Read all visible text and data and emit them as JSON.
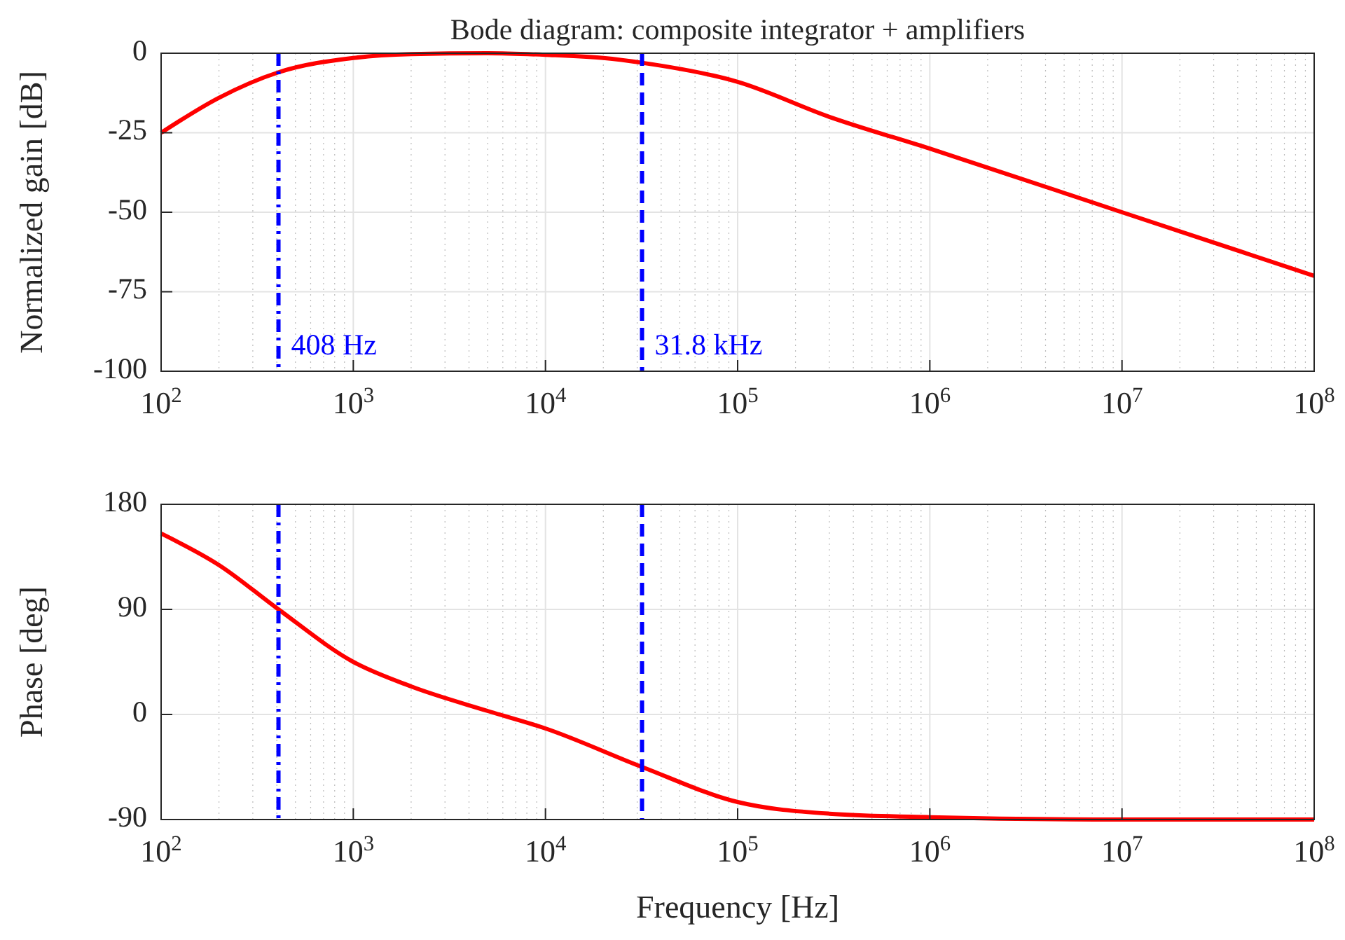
{
  "chart_data": [
    {
      "type": "line",
      "title": "Bode diagram: composite integrator + amplifiers",
      "ylabel": "Normalized gain [dB]",
      "log": "x",
      "grid": true,
      "line_style": "solid",
      "marker": "none",
      "xlim": [
        100,
        100000000
      ],
      "xticks": [
        {
          "value": 100,
          "label": "10$^{2}$"
        },
        {
          "value": 1000,
          "label": "10$^{3}$"
        },
        {
          "value": 10000,
          "label": "10$^{4}$"
        },
        {
          "value": 100000,
          "label": "10$^{5}$"
        },
        {
          "value": 1000000,
          "label": "10$^{6}$"
        },
        {
          "value": 10000000,
          "label": "10$^{7}$"
        },
        {
          "value": 100000000,
          "label": "10$^{8}$"
        }
      ],
      "ylim": [
        -100,
        0
      ],
      "yticks": [
        -100,
        -75,
        -50,
        -25,
        0
      ],
      "series": [
        {
          "color": "#ff0000",
          "x": [
            100,
            200,
            408,
            1000,
            2000,
            5000,
            10000,
            20000,
            31800,
            100000,
            300000,
            1000000,
            10000000,
            100000000
          ],
          "values": [
            -25,
            -14,
            -6,
            -1.5,
            -0.3,
            0,
            -0.5,
            -1.5,
            -3,
            -9,
            -20,
            -30,
            -50,
            -70
          ]
        }
      ],
      "ref_lines": [
        {
          "axis": "x",
          "value": 408,
          "label": "408 Hz",
          "color": "#0000ff",
          "line_style": "dashdot"
        },
        {
          "axis": "x",
          "value": 31800,
          "label": "31.8 kHz",
          "color": "#0000ff",
          "line_style": "dashed"
        }
      ]
    },
    {
      "type": "line",
      "xlabel": "Frequency [Hz]",
      "ylabel": "Phase [deg]",
      "log": "x",
      "grid": true,
      "line_style": "solid",
      "marker": "none",
      "xlim": [
        100,
        100000000
      ],
      "xticks": [
        {
          "value": 100,
          "label": "10$^{2}$"
        },
        {
          "value": 1000,
          "label": "10$^{3}$"
        },
        {
          "value": 10000,
          "label": "10$^{4}$"
        },
        {
          "value": 100000,
          "label": "10$^{5}$"
        },
        {
          "value": 1000000,
          "label": "10$^{6}$"
        },
        {
          "value": 10000000,
          "label": "10$^{7}$"
        },
        {
          "value": 100000000,
          "label": "10$^{8}$"
        }
      ],
      "ylim": [
        -90,
        180
      ],
      "yticks": [
        -90,
        0,
        90,
        180
      ],
      "series": [
        {
          "color": "#ff0000",
          "x": [
            100,
            200,
            408,
            1000,
            2000,
            5000,
            10000,
            31800,
            100000,
            300000,
            1000000,
            10000000,
            100000000
          ],
          "values": [
            155,
            128,
            90,
            45,
            24,
            3,
            -12,
            -45,
            -75,
            -85,
            -88,
            -90,
            -90
          ]
        }
      ],
      "ref_lines": [
        {
          "axis": "x",
          "value": 408,
          "color": "#0000ff",
          "line_style": "dashdot"
        },
        {
          "axis": "x",
          "value": 31800,
          "color": "#0000ff",
          "line_style": "dashed"
        }
      ]
    }
  ]
}
